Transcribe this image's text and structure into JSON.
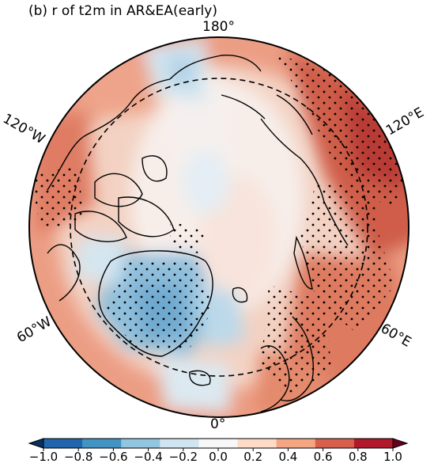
{
  "title": "(b) r of t2m in AR&EA(early)",
  "longitude_labels": {
    "top": "180°",
    "bottom": "0°",
    "upper_left": "120°W",
    "lower_left": "60°W",
    "upper_right": "120°E",
    "lower_right": "60°E"
  },
  "colorbar": {
    "min": -1.0,
    "max": 1.0,
    "ticks": [
      "−1.0",
      "−0.8",
      "−0.6",
      "−0.4",
      "−0.2",
      "0.0",
      "0.2",
      "0.4",
      "0.6",
      "0.8",
      "1.0"
    ],
    "tick_values": [
      -1.0,
      -0.8,
      -0.6,
      -0.4,
      -0.2,
      0.0,
      0.2,
      0.4,
      0.6,
      0.8,
      1.0
    ],
    "colors": [
      "#053061",
      "#2166ac",
      "#4393c3",
      "#92c5de",
      "#d1e5f0",
      "#f7f7f7",
      "#fddbc7",
      "#f4a582",
      "#d6604d",
      "#b2182b",
      "#67001f"
    ],
    "extend": "both"
  },
  "projection": "north polar stereographic",
  "significance_marker": "stippling"
}
